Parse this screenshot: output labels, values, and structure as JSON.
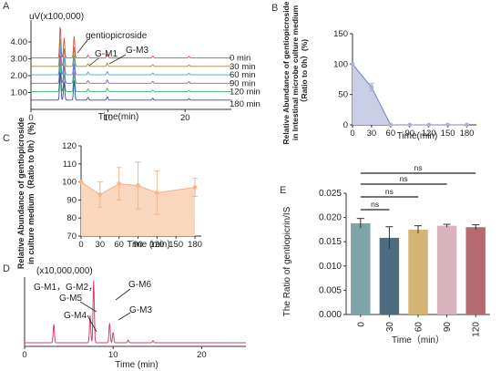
{
  "panels": [
    {
      "id": "A",
      "letter": "A",
      "chart_data": {
        "type": "line",
        "title": "",
        "unit_label": "uV(x100,000)",
        "xlabel": "Time(min)",
        "xlim": [
          0,
          26
        ],
        "ylim": [
          0,
          5.3
        ],
        "x_ticks": [
          "0",
          "10",
          "20"
        ],
        "y_ticks": [
          "1.00",
          "2.00",
          "3.00",
          "4.00"
        ],
        "series": [
          {
            "name": "0 min",
            "offset": 3.05,
            "color": "#d9534f"
          },
          {
            "name": "30 min",
            "offset": 2.55,
            "color": "#9c8c3c"
          },
          {
            "name": "60 min",
            "offset": 2.05,
            "color": "#4aa0d5"
          },
          {
            "name": "90 min",
            "offset": 1.55,
            "color": "#8e5fb8"
          },
          {
            "name": "120 min",
            "offset": 1.05,
            "color": "#3db371"
          },
          {
            "name": "180 min",
            "offset": 0.55,
            "color": "#2f4fa8"
          }
        ],
        "peaks": [
          {
            "x": 3.8,
            "h": 1.9
          },
          {
            "x": 4.3,
            "h": 1.2
          },
          {
            "x": 5.6,
            "h": 1.3
          },
          {
            "x": 7.4,
            "h": 0.18
          },
          {
            "x": 9.9,
            "h": 0.22
          },
          {
            "x": 15.8,
            "h": 0.12
          },
          {
            "x": 20.5,
            "h": 0.1
          }
        ],
        "annotations": [
          "gentiopicroside",
          "G-M1",
          "G-M3"
        ]
      }
    },
    {
      "id": "B",
      "letter": "B",
      "chart_data": {
        "type": "area",
        "ylabel_lines": [
          "Relative Abundance of gentiopicroside",
          "in Intestinal microbe culture medium",
          "（Ratio to 0h）(%)"
        ],
        "xlabel": "Time(min)",
        "x": [
          0,
          30,
          60,
          90,
          120,
          150,
          180
        ],
        "values": [
          100,
          62,
          0,
          0,
          0,
          0,
          0
        ],
        "errors": [
          0,
          6,
          0,
          0,
          0,
          0,
          0
        ],
        "xlim": [
          0,
          195
        ],
        "ylim": [
          0,
          150
        ],
        "x_ticks": [
          "0",
          "30",
          "60",
          "90",
          "120",
          "150",
          "180"
        ],
        "y_ticks": [
          "0",
          "50",
          "100",
          "150"
        ]
      }
    },
    {
      "id": "C",
      "letter": "C",
      "chart_data": {
        "type": "area",
        "ylabel_lines": [
          "Relative Abundance of gentiopicroside",
          "in culture medium（Ratio to 0h）(%)"
        ],
        "xlabel": "Time (min)",
        "x": [
          0,
          30,
          60,
          90,
          120,
          180
        ],
        "values": [
          100,
          93,
          99,
          98,
          94,
          97
        ],
        "errors": [
          0,
          7,
          9,
          13,
          12,
          5
        ],
        "xlim": [
          0,
          190
        ],
        "ylim": [
          70,
          120
        ],
        "x_ticks": [
          "0",
          "30",
          "60",
          "90",
          "120",
          "150",
          "180"
        ],
        "y_ticks": [
          "70",
          "80",
          "90",
          "100",
          "110",
          "120"
        ]
      }
    },
    {
      "id": "D",
      "letter": "D",
      "chart_data": {
        "type": "line",
        "unit_label": "(x10,000,000)",
        "xlabel": "Time  (min)",
        "xlim": [
          0,
          25
        ],
        "ylim": [
          0,
          1.0
        ],
        "x_ticks": [
          "0",
          "10",
          "20"
        ],
        "color": "#d6416b",
        "peaks": [
          {
            "x": 3.3,
            "h": 0.28
          },
          {
            "x": 7.4,
            "h": 0.42
          },
          {
            "x": 7.8,
            "h": 0.95
          },
          {
            "x": 9.6,
            "h": 0.3
          },
          {
            "x": 10.0,
            "h": 0.16
          },
          {
            "x": 11.7,
            "h": 0.04
          },
          {
            "x": 14.5,
            "h": 0.03
          }
        ],
        "annotations": [
          "G-M1，G-M2，",
          "G-M5",
          "G-M4",
          "G-M6",
          "G-M3"
        ]
      }
    },
    {
      "id": "E",
      "letter": "E",
      "chart_data": {
        "type": "bar",
        "ylabel": "The Ratio of  gentiopicrin/IS",
        "xlabel": "Time（min）",
        "categories": [
          "0",
          "30",
          "60",
          "90",
          "120"
        ],
        "values": [
          0.0188,
          0.0158,
          0.0175,
          0.0183,
          0.018
        ],
        "errors": [
          0.001,
          0.0023,
          0.0008,
          0.0003,
          0.0005
        ],
        "colors": [
          "#7ea4a8",
          "#4e6c80",
          "#d3b473",
          "#d9b4be",
          "#b56a6e"
        ],
        "ylim": [
          0,
          0.025
        ],
        "y_ticks": [
          "0.000",
          "0.005",
          "0.010",
          "0.015",
          "0.020",
          "0.025"
        ],
        "comparisons": [
          {
            "to": 1,
            "label": "ns"
          },
          {
            "to": 2,
            "label": "ns"
          },
          {
            "to": 3,
            "label": "ns"
          },
          {
            "to": 4,
            "label": "ns"
          }
        ]
      }
    }
  ]
}
